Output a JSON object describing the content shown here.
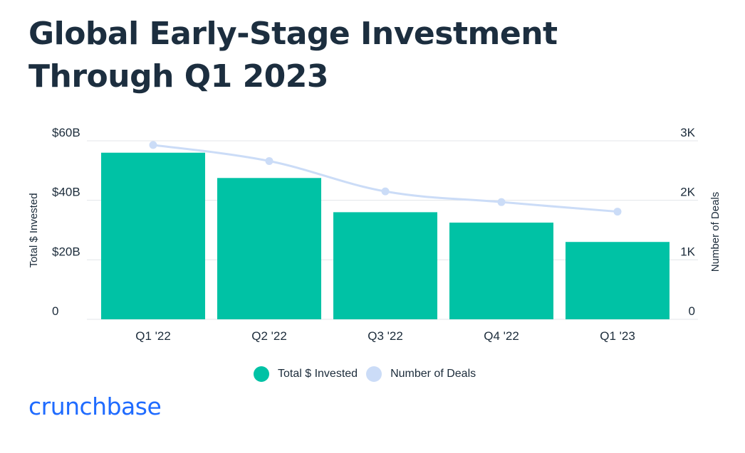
{
  "colors": {
    "bar": "#00c2a5",
    "line": "#cbdcf7",
    "grid": "#e3e6ea",
    "text": "#1b2b3a",
    "brand": "#1f6bff"
  },
  "brand": {
    "logo_text": "crunchbase"
  },
  "legend": {
    "items": [
      {
        "label": "Total $ Invested",
        "color": "#00c2a5"
      },
      {
        "label": "Number of Deals",
        "color": "#cbdcf7"
      }
    ]
  },
  "chart_data": {
    "type": "bar",
    "title": "Global Early-Stage Investment Through Q1 2023",
    "categories": [
      "Q1 '22",
      "Q2 '22",
      "Q3 '22",
      "Q4 '22",
      "Q1 '23"
    ],
    "series": [
      {
        "name": "Total $ Invested",
        "type": "bar",
        "axis": "left",
        "unit": "$B",
        "values": [
          56,
          47.5,
          36,
          32.5,
          26
        ]
      },
      {
        "name": "Number of Deals",
        "type": "line",
        "axis": "right",
        "values": [
          2930,
          2660,
          2150,
          1970,
          1810
        ]
      }
    ],
    "left_axis": {
      "label": "Total $ Invested",
      "ylim": [
        0,
        60
      ],
      "ticks": [
        0,
        20,
        40,
        60
      ],
      "tick_labels": [
        "0",
        "$20B",
        "$40B",
        "$60B"
      ]
    },
    "right_axis": {
      "label": "Number of Deals",
      "ylim": [
        0,
        3000
      ],
      "ticks": [
        0,
        1000,
        2000,
        3000
      ],
      "tick_labels": [
        "0",
        "1K",
        "2K",
        "3K"
      ]
    },
    "grid": true,
    "legend_position": "bottom-center"
  }
}
